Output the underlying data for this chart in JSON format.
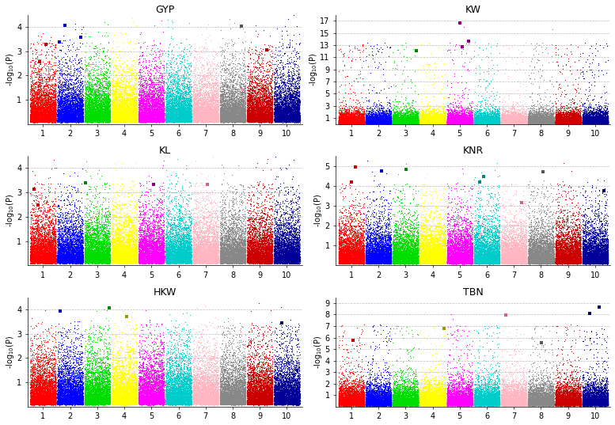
{
  "panels": [
    {
      "title": "GYP",
      "row": 0,
      "col": 0,
      "ylim": [
        0,
        4.5
      ],
      "yticks": [
        1,
        2,
        3,
        4
      ]
    },
    {
      "title": "KW",
      "row": 0,
      "col": 1,
      "ylim": [
        0,
        18
      ],
      "yticks": [
        1,
        3,
        5,
        7,
        9,
        11,
        13,
        15,
        17
      ]
    },
    {
      "title": "KL",
      "row": 1,
      "col": 0,
      "ylim": [
        0,
        4.5
      ],
      "yticks": [
        1,
        2,
        3,
        4
      ]
    },
    {
      "title": "KNR",
      "row": 1,
      "col": 1,
      "ylim": [
        0,
        5.5
      ],
      "yticks": [
        1,
        2,
        3,
        4,
        5
      ]
    },
    {
      "title": "HKW",
      "row": 2,
      "col": 0,
      "ylim": [
        0,
        4.5
      ],
      "yticks": [
        1,
        2,
        3,
        4
      ]
    },
    {
      "title": "TBN",
      "row": 2,
      "col": 1,
      "ylim": [
        0,
        9.5
      ],
      "yticks": [
        1,
        2,
        3,
        4,
        5,
        6,
        7,
        8,
        9
      ]
    }
  ],
  "chr_colors": [
    "#FF0000",
    "#0000FF",
    "#00DD00",
    "#FFFF00",
    "#FF00FF",
    "#00CCCC",
    "#FFB6C1",
    "#888888",
    "#CC0000",
    "#000099"
  ],
  "n_chromosomes": 10,
  "snps_per_chr": 4000,
  "ylabel": "-log$_{10}$(P)",
  "background_color": "#FFFFFF",
  "grid_color": "#BBBBBB",
  "point_size": 0.8,
  "title_fontsize": 9,
  "tick_fontsize": 7,
  "ylabel_fontsize": 7
}
